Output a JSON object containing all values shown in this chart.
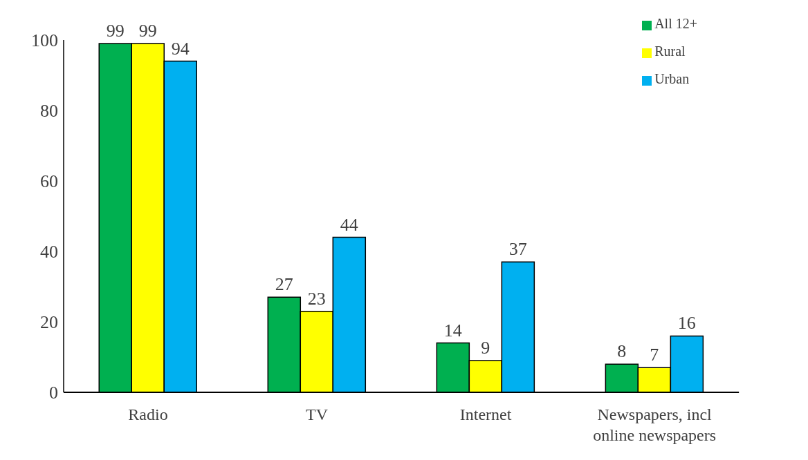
{
  "chart_data": {
    "type": "bar",
    "categories": [
      "Radio",
      "TV",
      "Internet",
      "Newspapers, incl online newspapers"
    ],
    "series": [
      {
        "name": "All 12+",
        "color": "#00b050",
        "values": [
          99,
          27,
          14,
          8
        ]
      },
      {
        "name": "Rural",
        "color": "#ffff00",
        "values": [
          99,
          23,
          9,
          7
        ]
      },
      {
        "name": "Urban",
        "color": "#00b0f0",
        "values": [
          94,
          44,
          37,
          16
        ]
      }
    ],
    "ylim": [
      0,
      100
    ],
    "yticks": [
      0,
      20,
      40,
      60,
      80,
      100
    ],
    "grid": false,
    "legend": "top right",
    "data_labels": true
  }
}
